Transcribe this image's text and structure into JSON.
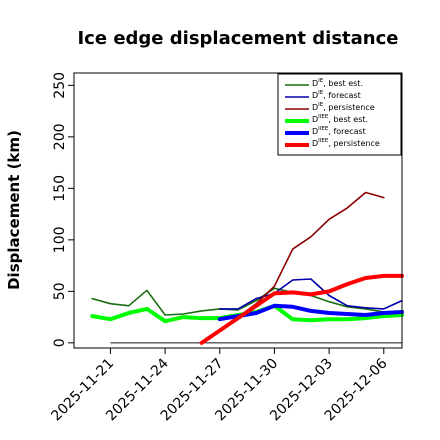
{
  "chart_data": {
    "type": "line",
    "title": "Ice edge displacement distance",
    "xlabel": "",
    "ylabel": "Displacement (km)",
    "ylim": [
      -5,
      262
    ],
    "xlim": [
      "2025-11-19",
      "2025-12-07"
    ],
    "yticks": [
      0,
      50,
      100,
      150,
      200,
      250
    ],
    "xticks": [
      {
        "label": "2025-11-21",
        "date": "2025-11-21",
        "color": "#000000"
      },
      {
        "label": "2025-11-24",
        "date": "2025-11-24",
        "color": "#000000"
      },
      {
        "label": "2025-11-27",
        "date": "2025-11-27",
        "color": "#228B22"
      },
      {
        "label": "2025-11-30",
        "date": "2025-11-30",
        "color": "#000000"
      },
      {
        "label": "2025-12-03",
        "date": "2025-12-03",
        "color": "#000000"
      },
      {
        "label": "2025-12-06",
        "date": "2025-12-06",
        "color": "#000000"
      }
    ],
    "legend": {
      "placement": "top-right"
    },
    "reference_line": {
      "y": 0,
      "from": "2025-11-21",
      "to": "2025-12-07",
      "color": "#555555"
    },
    "series": [
      {
        "name": "D<sup>IE</sup>, best est.",
        "color": "#1a6e12",
        "width": 1.6,
        "points": [
          [
            "2025-11-20",
            43
          ],
          [
            "2025-11-21",
            38
          ],
          [
            "2025-11-22",
            36
          ],
          [
            "2025-11-23",
            51
          ],
          [
            "2025-11-24",
            27
          ],
          [
            "2025-11-25",
            28
          ],
          [
            "2025-11-26",
            31
          ],
          [
            "2025-11-27",
            33
          ],
          [
            "2025-11-28",
            32
          ],
          [
            "2025-11-29",
            41
          ],
          [
            "2025-11-30",
            53
          ],
          [
            "2025-12-01",
            49
          ],
          [
            "2025-12-02",
            46
          ],
          [
            "2025-12-03",
            40
          ],
          [
            "2025-12-04",
            35
          ],
          [
            "2025-12-05",
            33
          ],
          [
            "2025-12-06",
            30
          ],
          [
            "2025-12-07",
            30
          ]
        ]
      },
      {
        "name": "D<sup>IE</sup>, forecast",
        "color": "#0000aa",
        "width": 1.6,
        "points": [
          [
            "2025-11-27",
            33
          ],
          [
            "2025-11-28",
            33
          ],
          [
            "2025-11-29",
            43
          ],
          [
            "2025-11-30",
            48
          ],
          [
            "2025-12-01",
            61
          ],
          [
            "2025-12-02",
            62
          ],
          [
            "2025-12-03",
            46
          ],
          [
            "2025-12-04",
            36
          ],
          [
            "2025-12-05",
            34
          ],
          [
            "2025-12-06",
            33
          ],
          [
            "2025-12-07",
            41
          ]
        ]
      },
      {
        "name": "D<sup>IE</sup>, persistence",
        "color": "#8b0000",
        "width": 1.6,
        "points": [
          [
            "2025-11-26",
            0
          ],
          [
            "2025-11-27",
            13
          ],
          [
            "2025-11-28",
            25
          ],
          [
            "2025-11-29",
            38
          ],
          [
            "2025-11-30",
            55
          ],
          [
            "2025-12-01",
            91
          ],
          [
            "2025-12-02",
            103
          ],
          [
            "2025-12-03",
            120
          ],
          [
            "2025-12-04",
            131
          ],
          [
            "2025-12-05",
            146
          ],
          [
            "2025-12-06",
            141
          ]
        ]
      },
      {
        "name": "D<sup>IIEE</sup>, best est.",
        "color": "#00ff00",
        "width": 4,
        "points": [
          [
            "2025-11-20",
            26
          ],
          [
            "2025-11-21",
            23
          ],
          [
            "2025-11-22",
            29
          ],
          [
            "2025-11-23",
            33
          ],
          [
            "2025-11-24",
            21
          ],
          [
            "2025-11-25",
            25
          ],
          [
            "2025-11-26",
            24
          ],
          [
            "2025-11-27",
            24
          ],
          [
            "2025-11-28",
            27
          ],
          [
            "2025-11-29",
            30
          ],
          [
            "2025-11-30",
            36
          ],
          [
            "2025-12-01",
            23
          ],
          [
            "2025-12-02",
            22
          ],
          [
            "2025-12-03",
            23
          ],
          [
            "2025-12-04",
            23
          ],
          [
            "2025-12-05",
            24
          ],
          [
            "2025-12-06",
            26
          ],
          [
            "2025-12-07",
            27
          ]
        ]
      },
      {
        "name": "D<sup>IIEE</sup>, forecast",
        "color": "#0000ff",
        "width": 4,
        "points": [
          [
            "2025-11-27",
            23
          ],
          [
            "2025-11-28",
            26
          ],
          [
            "2025-11-29",
            29
          ],
          [
            "2025-11-30",
            36
          ],
          [
            "2025-12-01",
            35
          ],
          [
            "2025-12-02",
            31
          ],
          [
            "2025-12-03",
            29
          ],
          [
            "2025-12-04",
            28
          ],
          [
            "2025-12-05",
            27
          ],
          [
            "2025-12-06",
            29
          ],
          [
            "2025-12-07",
            30
          ]
        ]
      },
      {
        "name": "D<sup>IIEE</sup>, persistence",
        "color": "#ff0000",
        "width": 4,
        "points": [
          [
            "2025-11-26",
            0
          ],
          [
            "2025-11-27",
            12
          ],
          [
            "2025-11-28",
            24
          ],
          [
            "2025-11-29",
            36
          ],
          [
            "2025-11-30",
            48
          ],
          [
            "2025-12-01",
            49
          ],
          [
            "2025-12-02",
            47
          ],
          [
            "2025-12-03",
            50
          ],
          [
            "2025-12-04",
            57
          ],
          [
            "2025-12-05",
            63
          ],
          [
            "2025-12-06",
            65
          ],
          [
            "2025-12-07",
            65
          ]
        ]
      }
    ]
  }
}
